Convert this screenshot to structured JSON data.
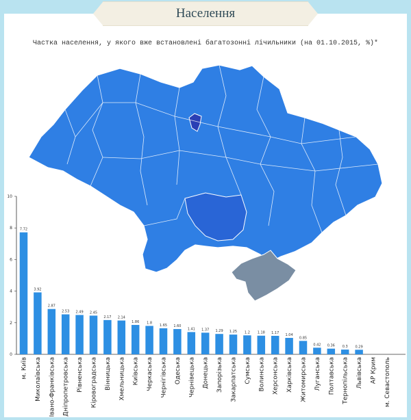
{
  "header": {
    "title": "Населення"
  },
  "chart_data": {
    "type": "bar",
    "title": "Частка населення, у якого вже встановлені багатозонні лічильники (на 01.10.2015, %)*",
    "xlabel": "",
    "ylabel": "",
    "ylim": [
      0,
      10
    ],
    "yticks": [
      0,
      2,
      4,
      6,
      8,
      10
    ],
    "categories": [
      "м. Київ",
      "Миколаївська",
      "Івано-Франківська",
      "Дніпропетровська",
      "Рівненська",
      "Кіровоградська",
      "Вінницька",
      "Хмельницька",
      "Київська",
      "Черкаська",
      "Чернігівська",
      "Одеська",
      "Чернівецька",
      "Донецька",
      "Запорізька",
      "Закарпатська",
      "Сумська",
      "Волинська",
      "Херсонська",
      "Харківська",
      "Житомирська",
      "Луганська",
      "Полтавська",
      "Тернопільська",
      "Львівська",
      "АР Крим",
      "м. Севастополь"
    ],
    "values": [
      7.72,
      3.92,
      2.87,
      2.53,
      2.49,
      2.45,
      2.17,
      2.14,
      1.86,
      1.8,
      1.65,
      1.6,
      1.41,
      1.37,
      1.29,
      1.25,
      1.2,
      1.18,
      1.17,
      1.04,
      0.85,
      0.42,
      0.36,
      0.3,
      0.29,
      null,
      null
    ],
    "value_labels": [
      "7.72",
      "3.92",
      "2.87",
      "2.53",
      "2.49",
      "2.45",
      "2.17",
      "2.14",
      "1.86",
      "1.8",
      "1.65",
      "1.60",
      "1.41",
      "1.37",
      "1.29",
      "1.25",
      "1.2",
      "1.18",
      "1.17",
      "1.04",
      "0.85",
      "0.42",
      "0.36",
      "0.3",
      "0.29",
      "",
      ""
    ],
    "grid": false,
    "colors": {
      "bar": "#2d8fe3",
      "map_fill": "#2f7fe4",
      "map_border": "#ffffff",
      "kyiv_city": "#2a3fb5",
      "crimea": "#7a8ea3"
    }
  }
}
